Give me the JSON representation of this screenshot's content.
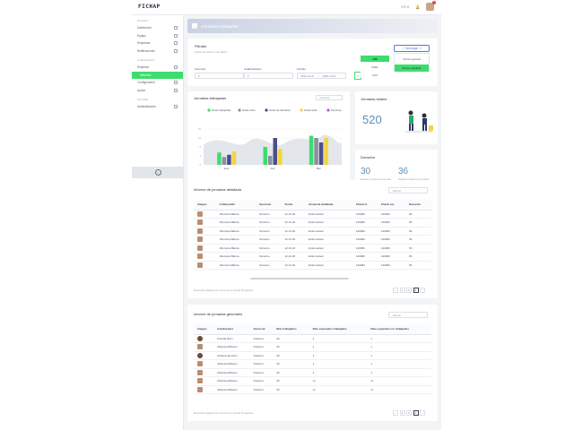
{
  "app": {
    "brand": "FICHAP"
  },
  "topbar": {
    "icons": [
      "globe-icon",
      "bell-icon",
      "user-avatar"
    ]
  },
  "sidebar": {
    "sections": [
      {
        "title": "Dirección",
        "items": [
          {
            "label": "Dashboard",
            "icon": "chart-icon"
          },
          {
            "label": "Equipo",
            "icon": "users-icon"
          },
          {
            "label": "Empresas",
            "icon": "building-icon"
          },
          {
            "label": "Notificaciones",
            "icon": "bell-icon"
          }
        ]
      },
      {
        "title": "Colaboradores",
        "items": [
          {
            "label": "Empresa",
            "icon": "chevron-down-icon"
          },
          {
            "label": "Informes",
            "icon": "",
            "active": true,
            "sub": true
          },
          {
            "label": "Configuración",
            "icon": "gear-icon"
          },
          {
            "label": "Ayuda",
            "icon": "help-icon"
          }
        ]
      },
      {
        "title": "Actividad",
        "items": [
          {
            "label": "Administración",
            "icon": "chevron-down-icon"
          }
        ]
      }
    ]
  },
  "page": {
    "title": "Jornadas trabajadas"
  },
  "filters": {
    "title": "Filtrado",
    "subtitle": "Aplica los filtros a los datos",
    "sucursal_label": "Sucursal",
    "colaboradores_label": "Colaboradores",
    "fecha_label": "Fechas",
    "date_from": "2020-12-07",
    "date_to": "2020-12-07",
    "download_label": "Descargar",
    "formats": [
      "Pdf",
      "XSDL",
      "CSV"
    ],
    "download_options": [
      "Informe general",
      "Informe detallado"
    ]
  },
  "chart_card": {
    "title": "Jornadas trabajadas",
    "period": "Semanal"
  },
  "chart_data": {
    "type": "bar",
    "categories": [
      "Ene",
      "Feb",
      "Mar"
    ],
    "series": [
      {
        "name": "Horas trabajadas",
        "values": [
          5.5,
          8,
          13
        ]
      },
      {
        "name": "Horas extra",
        "values": [
          3.5,
          4,
          12
        ]
      },
      {
        "name": "Horas de descanso",
        "values": [
          4.5,
          12,
          10
        ]
      },
      {
        "name": "Horas tarde",
        "values": [
          6,
          7,
          12
        ]
      },
      {
        "name": "Permisos",
        "values": [
          null,
          null,
          null
        ]
      }
    ],
    "colors": [
      "#3ddc6e",
      "#8a90a0",
      "#4a4e8c",
      "#f5d33d",
      "#b65cf0"
    ],
    "ylim": [
      0,
      16
    ],
    "yticks": [
      0,
      4,
      8,
      12,
      16
    ],
    "legend": "top"
  },
  "kpi_total": {
    "title": "Jornadas totales",
    "value": "520"
  },
  "kpi_duration": {
    "title": "Duración",
    "value1": "30",
    "caption1": "Duración media de la jornada laboral semanal",
    "value2": "36",
    "caption2": "Duración media de la jornada planificada semanal"
  },
  "detail_table": {
    "title": "Informe de jornadas detallada",
    "search_placeholder": "Buscar",
    "headers": [
      "Imagen",
      "Colaborador",
      "Sucursal",
      "Fecha",
      "Ausencia detallada",
      "Check in",
      "Check out",
      "Duración"
    ],
    "rows": [
      [
        "",
        "Alfonsina Blanco",
        "Durazno",
        "12.12.20",
        "Enfermedad",
        "120084",
        "120084",
        "8h"
      ],
      [
        "",
        "Alfonsina Blanco",
        "Durazno",
        "12.12.20",
        "Enfermedad",
        "120084",
        "120084",
        "8h"
      ],
      [
        "",
        "Alfonsina Blanco",
        "Durazno",
        "12.12.20",
        "Enfermedad",
        "120084",
        "120084",
        "8h"
      ],
      [
        "",
        "Alfonsina Blanco",
        "Durazno",
        "12.12.20",
        "Enfermedad",
        "120084",
        "120084",
        "8h"
      ],
      [
        "",
        "Alfonsina Blanco",
        "Durazno",
        "12.12.20",
        "Enfermedad",
        "120084",
        "120084",
        "8h"
      ],
      [
        "",
        "Alfonsina Blanco",
        "Durazno",
        "12.12.20",
        "Enfermedad",
        "120084",
        "120084",
        "8h"
      ],
      [
        "",
        "Alfonsina Blanco",
        "Durazno",
        "12.12.20",
        "Enfermedad",
        "120084",
        "120084",
        "8h"
      ]
    ],
    "footer": "Mostrando registros del 1 al 10 de un total de 25 registros",
    "pages": [
      "‹",
      "1",
      "2",
      "3",
      "›"
    ],
    "current_page": "3"
  },
  "general_table": {
    "title": "Informe de jornadas generales",
    "search_placeholder": "Buscar",
    "headers": [
      "Imagen",
      "Colaborador",
      "Sucursal",
      "Días trabajados",
      "Días esperados trabajados",
      "Días esperados no trabajados"
    ],
    "rows": [
      [
        "",
        "Fiorella Ricci",
        "Durazno",
        "30",
        "1",
        "1"
      ],
      [
        "",
        "Alfonsina Blanco",
        "Durazno",
        "30",
        "1",
        "1"
      ],
      [
        "",
        "Adriana Spotorio",
        "Durazno",
        "30",
        "1",
        "1"
      ],
      [
        "",
        "Alfonsina Blanco",
        "Durazno",
        "30",
        "1",
        "1"
      ],
      [
        "",
        "Alfonsina Blanco",
        "Durazno",
        "30",
        "1",
        "1"
      ],
      [
        "",
        "Alfonsina Blanco",
        "Durazno",
        "30",
        "x1",
        "x1"
      ],
      [
        "",
        "Alfonsina Blanco",
        "Durazno",
        "30",
        "x1",
        "x1"
      ]
    ],
    "footer": "Mostrando registros del 1 al 10 de un total de 25 registros",
    "pages": [
      "‹",
      "1",
      "2",
      "3",
      "›"
    ],
    "current_page": "3"
  }
}
